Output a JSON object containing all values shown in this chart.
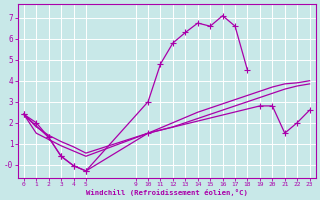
{
  "bg_color": "#c8e8e8",
  "grid_color": "#ffffff",
  "line_color": "#aa00aa",
  "xlim": [
    -0.5,
    23.5
  ],
  "ylim": [
    -0.65,
    7.65
  ],
  "xtick_vals": [
    0,
    1,
    2,
    3,
    4,
    5,
    9,
    10,
    11,
    12,
    13,
    14,
    15,
    16,
    17,
    18,
    19,
    20,
    21,
    22,
    23
  ],
  "ytick_vals": [
    0,
    1,
    2,
    3,
    4,
    5,
    6,
    7
  ],
  "ytick_labels": [
    "-0",
    "1",
    "2",
    "3",
    "4",
    "5",
    "6",
    "7"
  ],
  "xlabel": "Windchill (Refroidissement éolien,°C)",
  "curves": [
    {
      "x": [
        0,
        1,
        2,
        3,
        4,
        5,
        10,
        11,
        12,
        13,
        14,
        15,
        16,
        17,
        18
      ],
      "y": [
        2.4,
        2.0,
        1.3,
        0.4,
        -0.05,
        -0.3,
        3.0,
        4.8,
        5.8,
        6.3,
        6.75,
        6.6,
        7.1,
        6.6,
        4.5
      ],
      "marker": "+",
      "markersize": 4,
      "lw": 0.9
    },
    {
      "x": [
        0,
        1,
        2,
        3,
        4,
        5,
        10,
        11,
        12,
        13,
        14,
        15,
        16,
        17,
        18,
        19,
        20,
        21,
        22,
        23
      ],
      "y": [
        2.4,
        1.8,
        1.4,
        1.1,
        0.85,
        0.55,
        1.5,
        1.75,
        2.0,
        2.25,
        2.5,
        2.7,
        2.9,
        3.1,
        3.3,
        3.5,
        3.7,
        3.85,
        3.9,
        4.0
      ],
      "marker": null,
      "markersize": 0,
      "lw": 0.9
    },
    {
      "x": [
        0,
        1,
        2,
        3,
        4,
        5,
        10,
        11,
        12,
        13,
        14,
        15,
        16,
        17,
        18,
        19,
        20,
        21,
        22,
        23
      ],
      "y": [
        2.4,
        1.5,
        1.2,
        0.9,
        0.65,
        0.4,
        1.5,
        1.65,
        1.8,
        2.0,
        2.2,
        2.4,
        2.6,
        2.8,
        3.0,
        3.2,
        3.4,
        3.6,
        3.75,
        3.85
      ],
      "marker": null,
      "markersize": 0,
      "lw": 0.9
    },
    {
      "x": [
        0,
        2,
        3,
        4,
        5,
        10,
        19,
        20,
        21,
        22,
        23
      ],
      "y": [
        2.4,
        1.3,
        0.4,
        -0.05,
        -0.3,
        1.5,
        2.8,
        2.8,
        1.5,
        2.0,
        2.6
      ],
      "marker": "+",
      "markersize": 4,
      "lw": 0.9
    }
  ]
}
